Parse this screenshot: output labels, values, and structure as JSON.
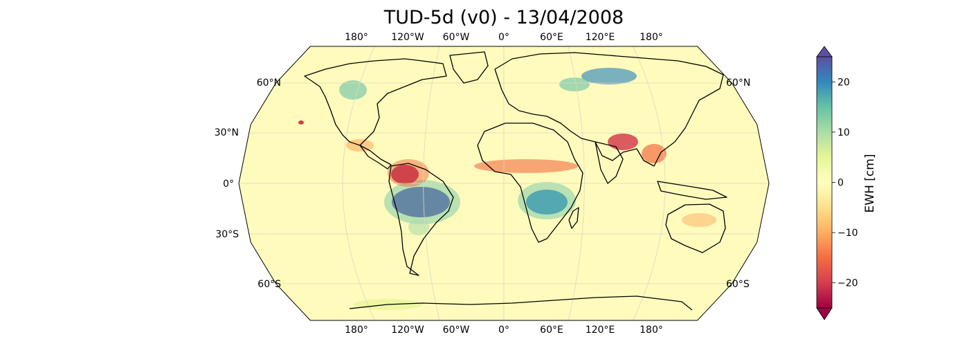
{
  "title": "TUD-5d (v0) - 13/04/2008",
  "lon_labels": [
    "180°",
    "120°W",
    "60°W",
    "0°",
    "60°E",
    "120°E",
    "180°"
  ],
  "lat_labels_left": [
    "60°N",
    "30°N",
    "0°",
    "30°S",
    "60°S"
  ],
  "lat_labels_right": [
    "60°N",
    "60°S"
  ],
  "colorbar": {
    "label": "EWH [cm]",
    "min": -25,
    "max": 25,
    "ticks": [
      20,
      10,
      0,
      -10,
      -20
    ],
    "tick_labels": [
      "20",
      "10",
      "0",
      "−10",
      "−20"
    ],
    "colors": [
      "#9e0142",
      "#d53e4f",
      "#f46d43",
      "#fdae61",
      "#fee08b",
      "#ffffbf",
      "#e6f598",
      "#abdda4",
      "#66c2a5",
      "#3288bd",
      "#5e4fa2"
    ]
  },
  "colors": {
    "ocean": "#fefbbd",
    "coast": "#000000",
    "grid": "#d8d8c0"
  }
}
